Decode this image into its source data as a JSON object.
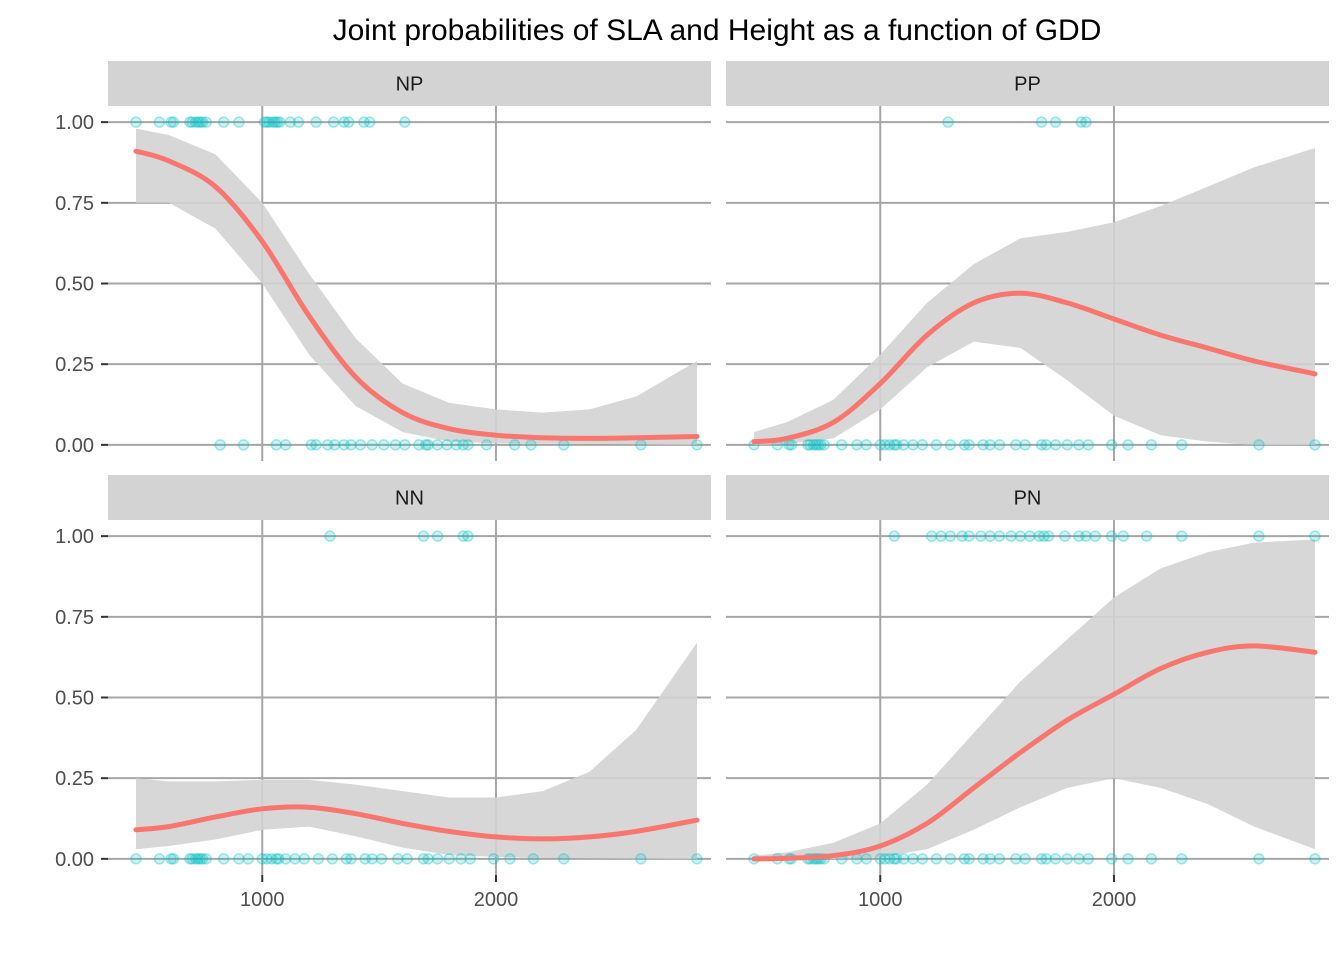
{
  "chart_data": {
    "type": "scatter",
    "title": "Joint probabilities of SLA and Height as a function of GDD",
    "xlabel": "",
    "ylabel": "",
    "xlim": [
      340,
      2920
    ],
    "ylim": [
      -0.05,
      1.05
    ],
    "x_ticks": [
      1000,
      2000
    ],
    "x_tick_labels": [
      "1000",
      "2000"
    ],
    "y_ticks": [
      0,
      0.25,
      0.5,
      0.75,
      1.0
    ],
    "y_tick_labels": [
      "0.00",
      "0.25",
      "0.50",
      "0.75",
      "1.00"
    ],
    "grid": true,
    "colors": {
      "points": "#00BFC4",
      "fit_line": "#F8766D",
      "ribbon": "#D3D3D3",
      "strip": "#D3D3D3",
      "gridline": "#A6A6A6"
    },
    "panels": [
      {
        "label": "NP",
        "points_1": [
          460,
          560,
          610,
          620,
          690,
          700,
          715,
          725,
          735,
          745,
          760,
          835,
          900,
          1010,
          1020,
          1030,
          1045,
          1055,
          1065,
          1075,
          1120,
          1155,
          1230,
          1305,
          1350,
          1370,
          1435,
          1460,
          1610
        ],
        "points_0": [
          820,
          920,
          1060,
          1100,
          1210,
          1230,
          1280,
          1310,
          1350,
          1380,
          1420,
          1470,
          1520,
          1570,
          1610,
          1670,
          1700,
          1710,
          1750,
          1790,
          1830,
          1860,
          1880,
          1960,
          2080,
          2150,
          2290,
          2620,
          2860
        ],
        "fit": {
          "x": [
            460,
            600,
            800,
            1000,
            1200,
            1400,
            1600,
            1800,
            2000,
            2200,
            2400,
            2600,
            2860
          ],
          "y": [
            0.91,
            0.88,
            0.8,
            0.63,
            0.4,
            0.21,
            0.1,
            0.05,
            0.03,
            0.022,
            0.02,
            0.022,
            0.026
          ]
        },
        "ribbon_upper": {
          "x": [
            460,
            600,
            800,
            1000,
            1200,
            1400,
            1600,
            1800,
            2000,
            2200,
            2400,
            2600,
            2860
          ],
          "y": [
            0.98,
            0.96,
            0.9,
            0.75,
            0.53,
            0.33,
            0.19,
            0.13,
            0.11,
            0.1,
            0.11,
            0.15,
            0.26
          ]
        },
        "ribbon_lower": {
          "x": [
            460,
            600,
            800,
            1000,
            1200,
            1400,
            1600,
            1800,
            2000,
            2200,
            2400,
            2600,
            2860
          ],
          "y": [
            0.75,
            0.75,
            0.67,
            0.5,
            0.28,
            0.12,
            0.04,
            0.01,
            0.005,
            0.004,
            0.003,
            0.002,
            0.0
          ]
        }
      },
      {
        "label": "PP",
        "points_1": [
          1290,
          1690,
          1750,
          1860,
          1880
        ],
        "points_0": [
          460,
          560,
          610,
          620,
          690,
          700,
          715,
          725,
          735,
          745,
          760,
          835,
          900,
          940,
          1000,
          1020,
          1040,
          1060,
          1070,
          1100,
          1140,
          1180,
          1240,
          1300,
          1360,
          1380,
          1440,
          1470,
          1510,
          1580,
          1620,
          1690,
          1710,
          1750,
          1800,
          1850,
          1890,
          1990,
          2060,
          2160,
          2290,
          2620,
          2860
        ],
        "fit": {
          "x": [
            460,
            600,
            800,
            1000,
            1200,
            1400,
            1600,
            1800,
            2000,
            2200,
            2400,
            2600,
            2860
          ],
          "y": [
            0.01,
            0.02,
            0.07,
            0.19,
            0.34,
            0.44,
            0.47,
            0.44,
            0.39,
            0.34,
            0.3,
            0.26,
            0.22
          ]
        },
        "ribbon_upper": {
          "x": [
            460,
            600,
            800,
            1000,
            1200,
            1400,
            1600,
            1800,
            2000,
            2200,
            2400,
            2600,
            2860
          ],
          "y": [
            0.04,
            0.07,
            0.14,
            0.28,
            0.44,
            0.56,
            0.64,
            0.66,
            0.69,
            0.74,
            0.8,
            0.86,
            0.92
          ]
        },
        "ribbon_lower": {
          "x": [
            460,
            600,
            800,
            1000,
            1200,
            1400,
            1600,
            1800,
            2000,
            2200,
            2400,
            2600,
            2860
          ],
          "y": [
            0.0,
            0.003,
            0.02,
            0.11,
            0.24,
            0.32,
            0.3,
            0.2,
            0.09,
            0.03,
            0.01,
            0.0,
            0.0
          ]
        }
      },
      {
        "label": "NN",
        "points_1": [
          1290,
          1690,
          1750,
          1860,
          1880
        ],
        "points_0": [
          460,
          560,
          610,
          620,
          690,
          700,
          715,
          725,
          735,
          745,
          760,
          835,
          900,
          940,
          1000,
          1020,
          1040,
          1060,
          1070,
          1100,
          1140,
          1180,
          1240,
          1300,
          1360,
          1380,
          1440,
          1470,
          1510,
          1580,
          1620,
          1690,
          1710,
          1750,
          1800,
          1850,
          1890,
          1990,
          2060,
          2160,
          2290,
          2620,
          2860
        ],
        "fit": {
          "x": [
            460,
            600,
            800,
            1000,
            1200,
            1400,
            1600,
            1800,
            2000,
            2200,
            2400,
            2600,
            2860
          ],
          "y": [
            0.09,
            0.1,
            0.13,
            0.155,
            0.16,
            0.14,
            0.11,
            0.085,
            0.068,
            0.062,
            0.068,
            0.085,
            0.12
          ]
        },
        "ribbon_upper": {
          "x": [
            460,
            600,
            800,
            1000,
            1200,
            1400,
            1600,
            1800,
            2000,
            2200,
            2400,
            2600,
            2860
          ],
          "y": [
            0.25,
            0.24,
            0.24,
            0.245,
            0.245,
            0.23,
            0.21,
            0.19,
            0.19,
            0.21,
            0.27,
            0.4,
            0.67
          ]
        },
        "ribbon_lower": {
          "x": [
            460,
            600,
            800,
            1000,
            1200,
            1400,
            1600,
            1800,
            2000,
            2200,
            2400,
            2600,
            2860
          ],
          "y": [
            0.03,
            0.04,
            0.06,
            0.09,
            0.1,
            0.07,
            0.035,
            0.012,
            0.006,
            0.003,
            0.002,
            0.001,
            0.0
          ]
        }
      },
      {
        "label": "PN",
        "points_1": [
          1060,
          1220,
          1260,
          1300,
          1350,
          1380,
          1430,
          1470,
          1510,
          1560,
          1600,
          1640,
          1680,
          1700,
          1720,
          1790,
          1850,
          1880,
          1920,
          1990,
          2040,
          2140,
          2290,
          2620,
          2860
        ],
        "points_0": [
          460,
          560,
          610,
          620,
          690,
          700,
          715,
          725,
          735,
          745,
          760,
          835,
          900,
          940,
          1000,
          1020,
          1040,
          1060,
          1070,
          1100,
          1140,
          1180,
          1240,
          1300,
          1360,
          1380,
          1440,
          1470,
          1510,
          1580,
          1620,
          1690,
          1710,
          1750,
          1800,
          1850,
          1890,
          1990,
          2060,
          2160,
          2290,
          2620,
          2860
        ],
        "fit": {
          "x": [
            460,
            600,
            800,
            1000,
            1200,
            1400,
            1600,
            1800,
            2000,
            2200,
            2400,
            2600,
            2860
          ],
          "y": [
            0.0,
            0.002,
            0.01,
            0.04,
            0.11,
            0.22,
            0.33,
            0.43,
            0.51,
            0.59,
            0.64,
            0.66,
            0.64
          ]
        },
        "ribbon_upper": {
          "x": [
            460,
            600,
            800,
            1000,
            1200,
            1400,
            1600,
            1800,
            2000,
            2200,
            2400,
            2600,
            2860
          ],
          "y": [
            0.01,
            0.02,
            0.05,
            0.11,
            0.23,
            0.39,
            0.55,
            0.68,
            0.81,
            0.9,
            0.95,
            0.98,
            0.99
          ]
        },
        "ribbon_lower": {
          "x": [
            460,
            600,
            800,
            1000,
            1200,
            1400,
            1600,
            1800,
            2000,
            2200,
            2400,
            2600,
            2860
          ],
          "y": [
            0.0,
            0.0,
            0.0,
            0.005,
            0.03,
            0.09,
            0.16,
            0.22,
            0.25,
            0.22,
            0.17,
            0.1,
            0.03
          ]
        }
      }
    ]
  }
}
